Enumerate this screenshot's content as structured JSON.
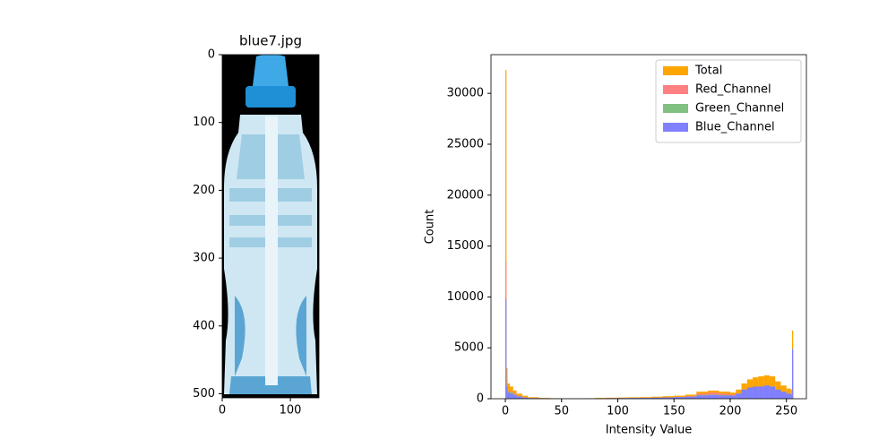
{
  "chart_data": [
    {
      "type": "image",
      "title": "blue7.jpg",
      "xlim": [
        0,
        142
      ],
      "ylim": [
        506,
        0
      ],
      "xticks": [
        0,
        100
      ],
      "yticks": [
        0,
        100,
        200,
        300,
        400,
        500
      ]
    },
    {
      "type": "histogram",
      "xlabel": "Intensity Value",
      "ylabel": "Count",
      "xlim": [
        -12.75,
        267.75
      ],
      "ylim": [
        0,
        33800
      ],
      "xticks": [
        0,
        50,
        100,
        150,
        200,
        250
      ],
      "yticks": [
        0,
        5000,
        10000,
        15000,
        20000,
        25000,
        30000
      ],
      "legend": "upper right",
      "bins": [
        0,
        1,
        2,
        4,
        7,
        10,
        15,
        20,
        30,
        40,
        50,
        60,
        70,
        80,
        90,
        100,
        110,
        120,
        130,
        140,
        150,
        160,
        170,
        180,
        190,
        200,
        205,
        210,
        215,
        220,
        225,
        230,
        235,
        240,
        245,
        250,
        254,
        255,
        256
      ],
      "series": [
        {
          "name": "Total",
          "color": "#ffa500",
          "values": [
            32300,
            3000,
            1500,
            1200,
            800,
            500,
            300,
            150,
            80,
            50,
            40,
            40,
            50,
            80,
            100,
            120,
            140,
            160,
            200,
            250,
            300,
            400,
            700,
            800,
            700,
            600,
            900,
            1500,
            1900,
            2100,
            2200,
            2300,
            2200,
            1700,
            1300,
            1000,
            900,
            6700
          ]
        },
        {
          "name": "Red_Channel",
          "color": "#ff8080",
          "values": [
            13500,
            1500,
            800,
            700,
            500,
            300,
            150,
            80,
            40,
            20,
            20,
            20,
            30,
            40,
            50,
            60,
            70,
            90,
            110,
            140,
            180,
            250,
            500,
            600,
            500,
            400,
            500,
            400,
            400,
            450,
            500,
            500,
            400,
            300,
            250,
            200,
            150,
            2000
          ]
        },
        {
          "name": "Green_Channel",
          "color": "#80c080",
          "values": [
            9500,
            1300,
            700,
            600,
            400,
            250,
            120,
            60,
            30,
            20,
            20,
            20,
            30,
            40,
            50,
            60,
            70,
            80,
            100,
            120,
            150,
            200,
            350,
            400,
            350,
            300,
            450,
            700,
            800,
            800,
            800,
            800,
            700,
            500,
            400,
            300,
            250,
            4000
          ]
        },
        {
          "name": "Blue_Channel",
          "color": "#8080ff",
          "values": [
            9800,
            1200,
            600,
            500,
            350,
            200,
            100,
            50,
            30,
            20,
            20,
            20,
            30,
            40,
            50,
            60,
            70,
            80,
            100,
            120,
            150,
            200,
            300,
            350,
            300,
            300,
            500,
            900,
            1100,
            1200,
            1200,
            1300,
            1200,
            900,
            700,
            500,
            400,
            4900
          ]
        }
      ]
    }
  ]
}
